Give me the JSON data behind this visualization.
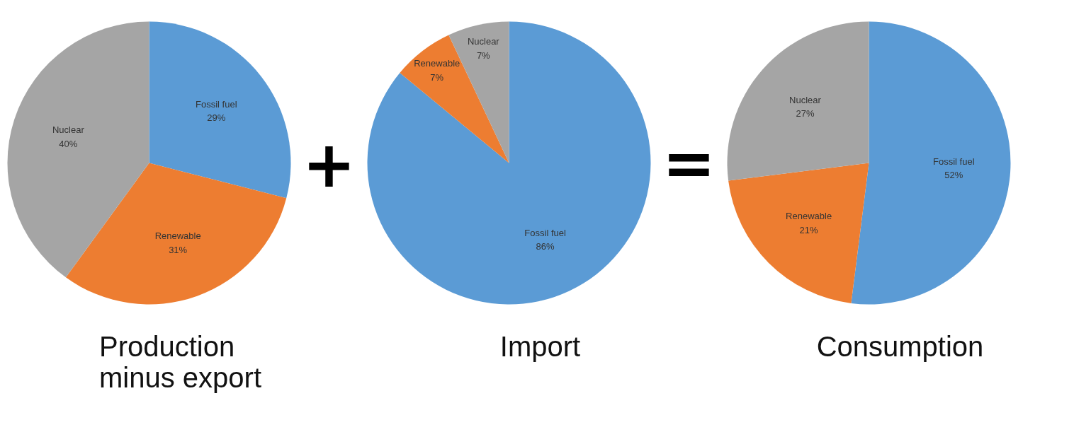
{
  "chart_data": [
    {
      "type": "pie",
      "title": "Production\nminus export",
      "categories": [
        "Fossil fuel",
        "Renewable",
        "Nuclear"
      ],
      "values": [
        29,
        31,
        40
      ],
      "value_labels": [
        "29%",
        "31%",
        "40%"
      ],
      "colors": [
        "#5b9bd5",
        "#ed7d31",
        "#a5a5a5"
      ],
      "annotations": [
        "+"
      ]
    },
    {
      "type": "pie",
      "title": "Import",
      "categories": [
        "Fossil fuel",
        "Renewable",
        "Nuclear"
      ],
      "values": [
        86,
        7,
        7
      ],
      "value_labels": [
        "86%",
        "7%",
        "7%"
      ],
      "colors": [
        "#5b9bd5",
        "#ed7d31",
        "#a5a5a5"
      ],
      "annotations": [
        "="
      ]
    },
    {
      "type": "pie",
      "title": "Consumption",
      "categories": [
        "Fossil fuel",
        "Renewable",
        "Nuclear"
      ],
      "values": [
        52,
        21,
        27
      ],
      "value_labels": [
        "52%",
        "21%",
        "27%"
      ],
      "colors": [
        "#5b9bd5",
        "#ed7d31",
        "#a5a5a5"
      ]
    }
  ]
}
